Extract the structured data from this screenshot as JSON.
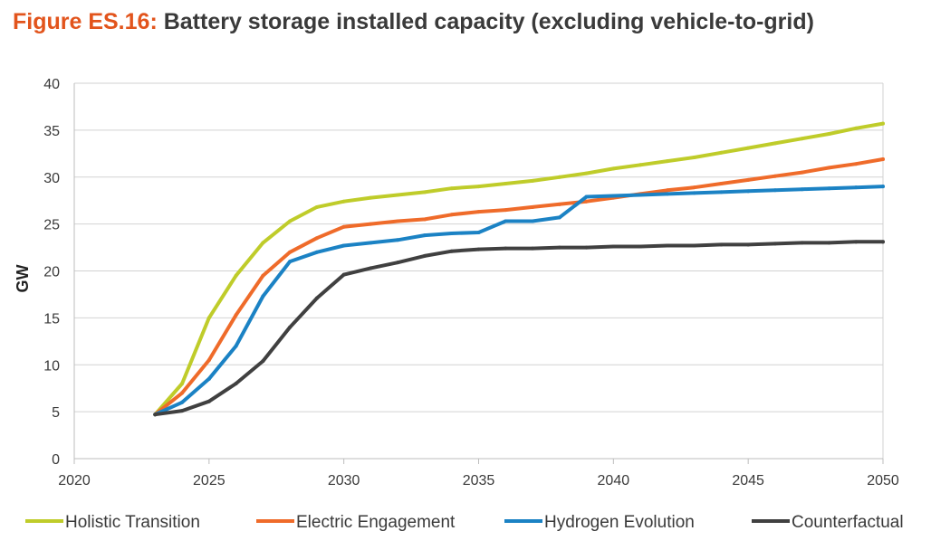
{
  "title": {
    "prefix": "Figure ES.16:",
    "text": "Battery storage installed capacity (excluding vehicle-to-grid)"
  },
  "chart_data": {
    "type": "line",
    "title": "Battery storage installed capacity (excluding vehicle-to-grid)",
    "xlabel": "",
    "ylabel": "GW",
    "xlim": [
      2020,
      2050
    ],
    "ylim": [
      0,
      40
    ],
    "xticks": [
      2020,
      2025,
      2030,
      2035,
      2040,
      2045,
      2050
    ],
    "yticks": [
      0,
      5,
      10,
      15,
      20,
      25,
      30,
      35,
      40
    ],
    "grid": "horizontal",
    "legend": "bottom",
    "x": [
      2023,
      2024,
      2025,
      2026,
      2027,
      2028,
      2029,
      2030,
      2031,
      2032,
      2033,
      2034,
      2035,
      2036,
      2037,
      2038,
      2039,
      2040,
      2041,
      2042,
      2043,
      2044,
      2045,
      2046,
      2047,
      2048,
      2049,
      2050
    ],
    "series": [
      {
        "name": "Holistic Transition",
        "color": "#bfcc2a",
        "values": [
          4.7,
          8.0,
          15.0,
          19.5,
          23.0,
          25.3,
          26.8,
          27.4,
          27.8,
          28.1,
          28.4,
          28.8,
          29.0,
          29.3,
          29.6,
          30.0,
          30.4,
          30.9,
          31.3,
          31.7,
          32.1,
          32.6,
          33.1,
          33.6,
          34.1,
          34.6,
          35.2,
          35.7
        ]
      },
      {
        "name": "Electric Engagement",
        "color": "#ef6b2a",
        "values": [
          4.7,
          7.0,
          10.5,
          15.3,
          19.5,
          22.0,
          23.5,
          24.7,
          25.0,
          25.3,
          25.5,
          26.0,
          26.3,
          26.5,
          26.8,
          27.1,
          27.4,
          27.8,
          28.2,
          28.6,
          28.9,
          29.3,
          29.7,
          30.1,
          30.5,
          31.0,
          31.4,
          31.9
        ]
      },
      {
        "name": "Hydrogen Evolution",
        "color": "#1b82c4",
        "values": [
          4.7,
          6.0,
          8.5,
          12.0,
          17.3,
          21.0,
          22.0,
          22.7,
          23.0,
          23.3,
          23.8,
          24.0,
          24.1,
          25.3,
          25.3,
          25.7,
          27.9,
          28.0,
          28.1,
          28.2,
          28.3,
          28.4,
          28.5,
          28.6,
          28.7,
          28.8,
          28.9,
          29.0
        ]
      },
      {
        "name": "Counterfactual",
        "color": "#404040",
        "values": [
          4.7,
          5.1,
          6.1,
          8.0,
          10.4,
          14.0,
          17.1,
          19.6,
          20.3,
          20.9,
          21.6,
          22.1,
          22.3,
          22.4,
          22.4,
          22.5,
          22.5,
          22.6,
          22.6,
          22.7,
          22.7,
          22.8,
          22.8,
          22.9,
          23.0,
          23.0,
          23.1,
          23.1
        ]
      }
    ]
  }
}
